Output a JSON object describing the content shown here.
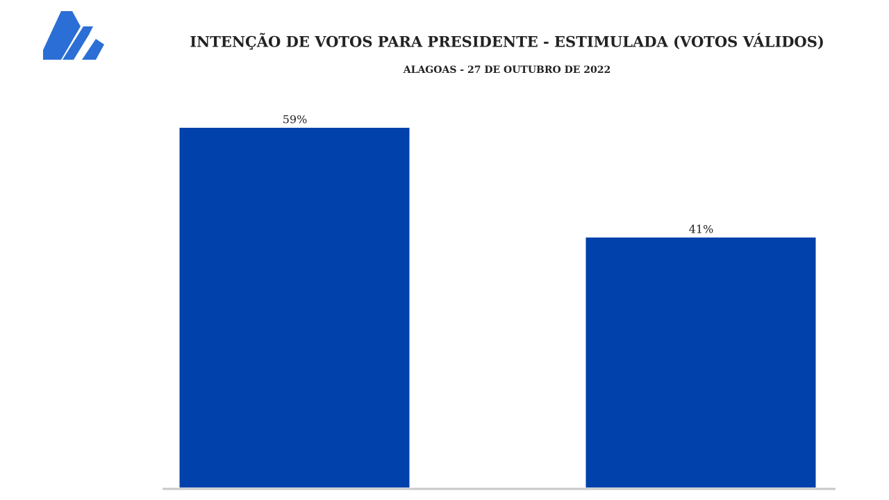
{
  "chart_data": {
    "type": "bar",
    "title": "INTENÇÃO DE VOTOS PARA PRESIDENTE - ESTIMULADA (VOTOS VÁLIDOS)",
    "subtitle": "ALAGOAS - 27 DE OUTUBRO DE 2022",
    "categories": [
      null,
      null
    ],
    "values": [
      59,
      41
    ],
    "value_labels": [
      "59%",
      "41%"
    ],
    "color": "#0041ab"
  }
}
